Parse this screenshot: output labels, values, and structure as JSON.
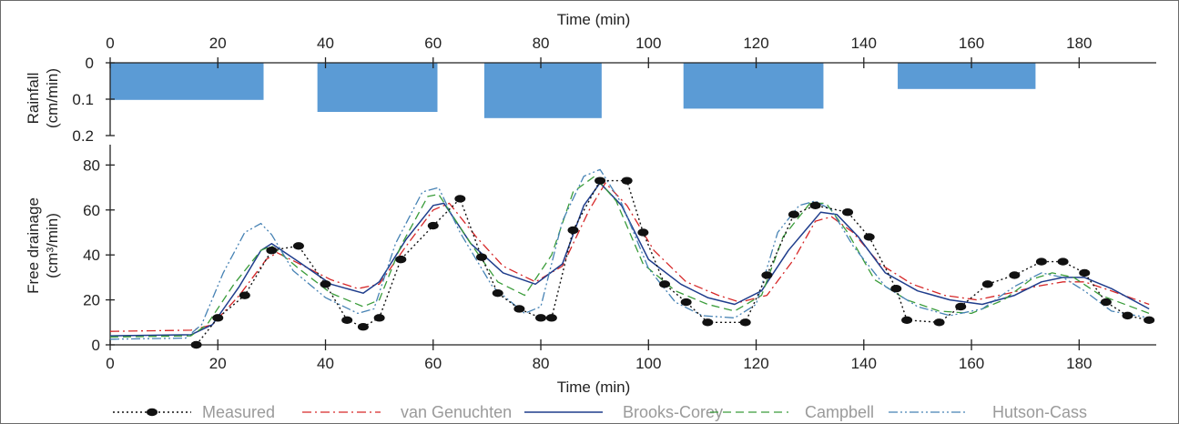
{
  "chart_data": [
    {
      "type": "bar",
      "panel": "rainfall",
      "xlabel": "Time (min)",
      "ylabel_lines": [
        "Rainfall",
        "(cm/min)"
      ],
      "xlim": [
        0,
        195
      ],
      "ylim": [
        0,
        0.2
      ],
      "y_inverted": true,
      "x_ticks": [
        0,
        20,
        40,
        60,
        80,
        100,
        120,
        140,
        160,
        180
      ],
      "y_ticks": [
        0,
        0.1,
        0.2
      ],
      "y_tick_labels": [
        "0",
        "0.1",
        "0.2"
      ],
      "color": "#5b9bd5",
      "bars": [
        {
          "start": 0,
          "end": 28.5,
          "value": 0.102
        },
        {
          "start": 38.5,
          "end": 60.8,
          "value": 0.135
        },
        {
          "start": 69.5,
          "end": 91.3,
          "value": 0.152
        },
        {
          "start": 106.5,
          "end": 132.5,
          "value": 0.126
        },
        {
          "start": 146.3,
          "end": 171.9,
          "value": 0.072
        }
      ]
    },
    {
      "type": "line",
      "panel": "drainage",
      "xlabel": "Time (min)",
      "ylabel_lines": [
        "Free drainage",
        "(cm³/min)"
      ],
      "xlim": [
        0,
        195
      ],
      "ylim": [
        0,
        85
      ],
      "x_ticks": [
        0,
        20,
        40,
        60,
        80,
        100,
        120,
        140,
        160,
        180
      ],
      "y_ticks": [
        0,
        20,
        40,
        60,
        80
      ],
      "legend": "bottom",
      "series": [
        {
          "name": "Measured",
          "color": "#111111",
          "style": "dotted-markers",
          "x": [
            16,
            20,
            25,
            30,
            35,
            40,
            44,
            47,
            50,
            54,
            60,
            65,
            69,
            72,
            76,
            80,
            82,
            86,
            91,
            96,
            99,
            103,
            107,
            111,
            118,
            122,
            127,
            131,
            137,
            141,
            146,
            148,
            154,
            158,
            163,
            168,
            173,
            177,
            181,
            185,
            189,
            193
          ],
          "y": [
            0,
            12,
            22,
            42,
            44,
            27,
            11,
            8,
            12,
            38,
            53,
            65,
            39,
            23,
            16,
            12,
            12,
            51,
            73,
            73,
            50,
            27,
            19,
            10,
            10,
            31,
            58,
            62,
            59,
            48,
            25,
            11,
            10,
            17,
            27,
            31,
            37,
            37,
            32,
            19,
            13,
            11
          ]
        },
        {
          "name": "van Genuchten",
          "color": "#d62728",
          "style": "dashdot",
          "x": [
            0,
            15,
            19,
            24,
            29,
            31,
            36,
            41,
            46,
            50,
            55,
            60,
            63,
            68,
            73,
            79,
            84,
            89,
            92,
            96,
            101,
            107,
            113,
            117,
            122,
            127,
            131,
            134,
            138,
            143,
            149,
            155,
            161,
            167,
            172,
            177,
            181,
            186,
            193
          ],
          "y": [
            6,
            6.5,
            9,
            22,
            38,
            41,
            35,
            29,
            25,
            27,
            44,
            60,
            63,
            48,
            35,
            28,
            35,
            60,
            72,
            62,
            42,
            28,
            22,
            19,
            22,
            38,
            55,
            57,
            50,
            36,
            27,
            22,
            20,
            23,
            26,
            28,
            28,
            24,
            18
          ]
        },
        {
          "name": "Brooks-Corey",
          "color": "#1f3d8c",
          "style": "solid",
          "x": [
            0,
            15,
            19,
            24,
            28,
            30,
            35,
            41,
            47,
            50,
            55,
            60,
            62,
            67,
            73,
            79,
            84,
            88,
            91,
            95,
            100,
            106,
            111,
            116,
            121,
            126,
            132,
            135,
            139,
            144,
            150,
            156,
            162,
            168,
            173,
            177,
            181,
            186,
            193
          ],
          "y": [
            4,
            4.5,
            9,
            26,
            42,
            45,
            37,
            27,
            23,
            28,
            47,
            62,
            63,
            45,
            32,
            27,
            36,
            62,
            72,
            62,
            38,
            27,
            21,
            18,
            24,
            42,
            59,
            58,
            48,
            32,
            24,
            20,
            18,
            22,
            28,
            30,
            30,
            25,
            16
          ]
        },
        {
          "name": "Campbell",
          "color": "#3a9c3a",
          "style": "dashed",
          "x": [
            0,
            15,
            18,
            23,
            28,
            30,
            35,
            41,
            47,
            50,
            54,
            59,
            61,
            67,
            72,
            77,
            82,
            86,
            90,
            94,
            99,
            105,
            111,
            116,
            121,
            125,
            130,
            133,
            137,
            142,
            148,
            154,
            160,
            166,
            171,
            175,
            179,
            184,
            193
          ],
          "y": [
            3.5,
            4,
            9,
            27,
            42,
            44,
            34,
            23,
            17,
            20,
            44,
            66,
            67,
            45,
            28,
            22,
            40,
            68,
            75,
            64,
            36,
            24,
            18,
            15,
            22,
            48,
            63,
            63,
            50,
            29,
            20,
            15,
            14,
            20,
            29,
            32,
            30,
            22,
            14
          ]
        },
        {
          "name": "Hutson-Cass",
          "color": "#4682b4",
          "style": "dashdotdot",
          "x": [
            0,
            14,
            17,
            21,
            25,
            28,
            30,
            34,
            40,
            46,
            49,
            53,
            58,
            61,
            65,
            71,
            77,
            80,
            84,
            88,
            91,
            95,
            100,
            105,
            110,
            116,
            120,
            124,
            128,
            131,
            134,
            138,
            144,
            150,
            156,
            162,
            168,
            173,
            177,
            181,
            186,
            193
          ],
          "y": [
            2.5,
            3,
            9,
            32,
            50,
            54,
            49,
            33,
            21,
            14,
            16,
            45,
            68,
            70,
            50,
            26,
            14,
            17,
            55,
            75,
            78,
            63,
            34,
            19,
            13,
            12,
            18,
            50,
            62,
            64,
            60,
            44,
            26,
            17,
            13,
            16,
            26,
            32,
            30,
            24,
            15,
            12
          ]
        }
      ]
    }
  ]
}
